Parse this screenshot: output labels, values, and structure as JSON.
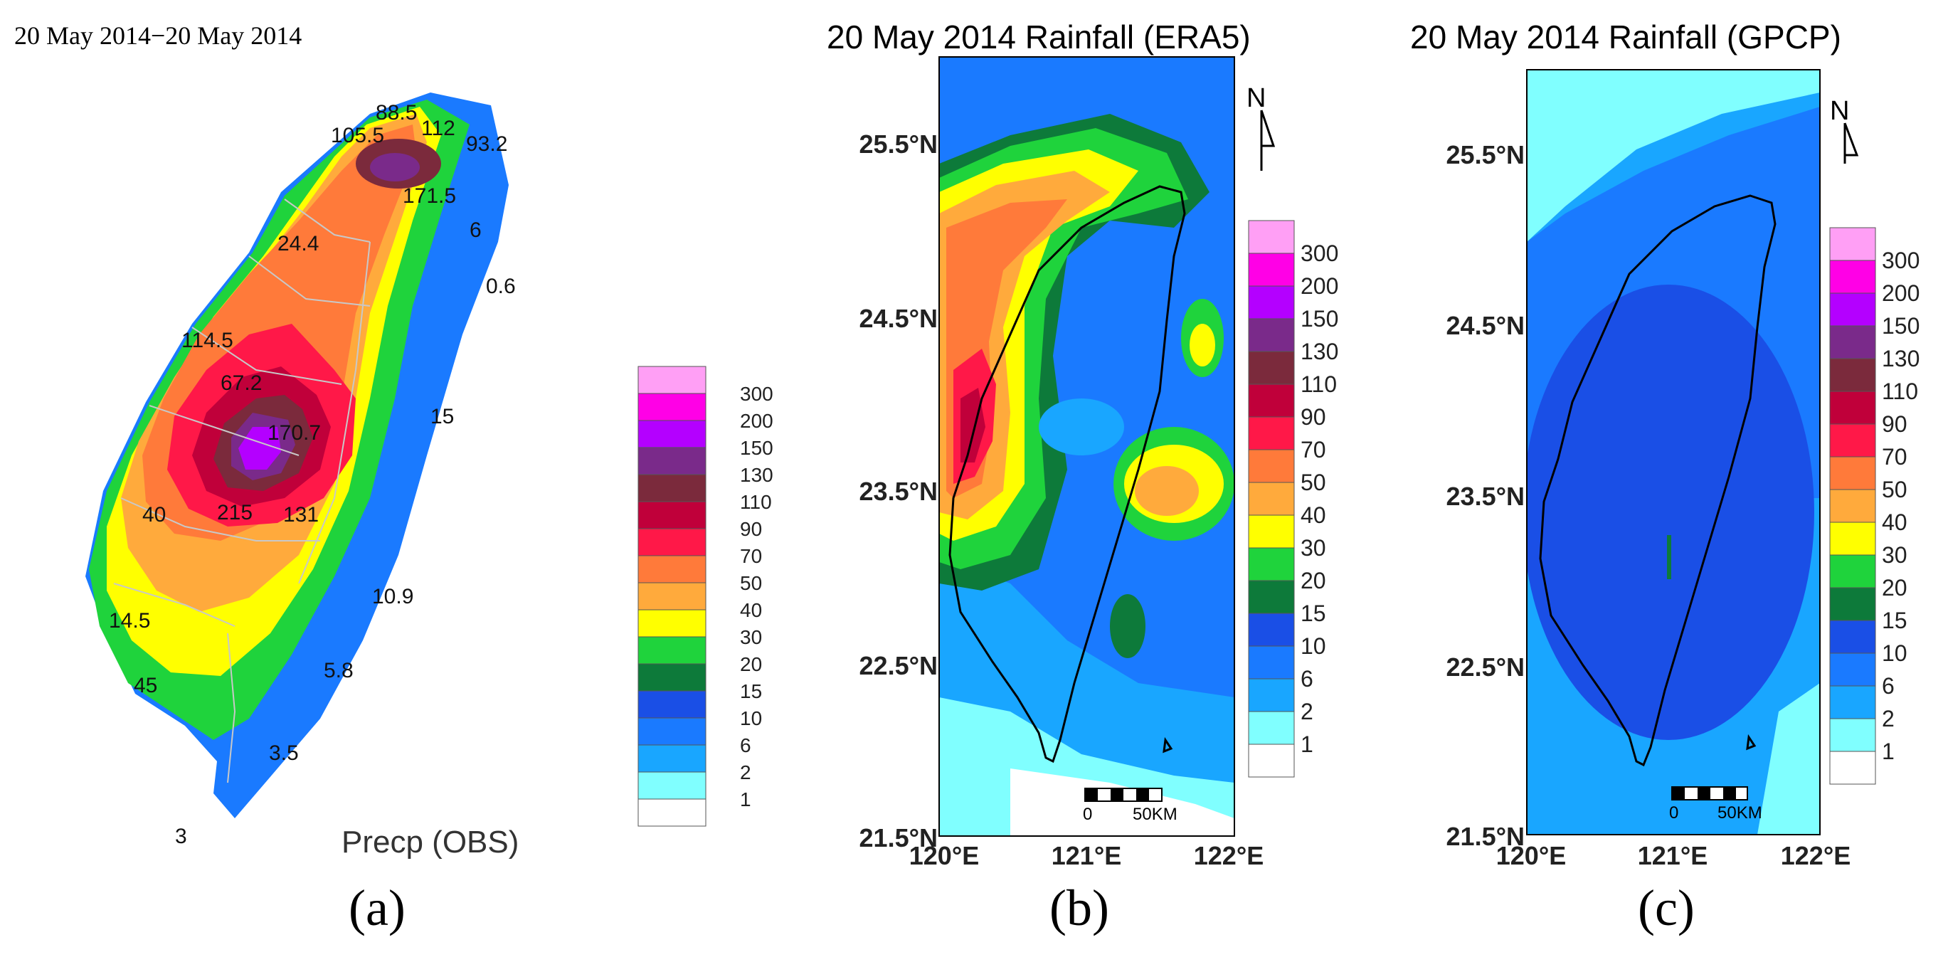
{
  "panel_a": {
    "date_range": "20 May 2014−20 May 2014",
    "title": "Precp (OBS)",
    "caption": "(a)",
    "station_values": [
      {
        "label": "88.5"
      },
      {
        "label": "105.5"
      },
      {
        "label": "112"
      },
      {
        "label": "93.2"
      },
      {
        "label": "171.5"
      },
      {
        "label": "24.4"
      },
      {
        "label": "6"
      },
      {
        "label": "0.6"
      },
      {
        "label": "114.5"
      },
      {
        "label": "67.2"
      },
      {
        "label": "15"
      },
      {
        "label": "170.7"
      },
      {
        "label": "40"
      },
      {
        "label": "215"
      },
      {
        "label": "131"
      },
      {
        "label": "10.9"
      },
      {
        "label": "14.5"
      },
      {
        "label": "5.8"
      },
      {
        "label": "45"
      },
      {
        "label": "3.5"
      },
      {
        "label": "3"
      }
    ]
  },
  "panel_b": {
    "title": "20 May 2014 Rainfall (ERA5)",
    "caption": "(b)",
    "lat_ticks": [
      "25.5°N",
      "24.5°N",
      "23.5°N",
      "22.5°N",
      "21.5°N"
    ],
    "lon_ticks": [
      "120°E",
      "121°E",
      "122°E"
    ],
    "north_label": "N",
    "scale_zero": "0",
    "scale_label": "50KM"
  },
  "panel_c": {
    "title": "20 May 2014 Rainfall (GPCP)",
    "caption": "(c)",
    "lat_ticks": [
      "25.5°N",
      "24.5°N",
      "23.5°N",
      "22.5°N",
      "21.5°N"
    ],
    "lon_ticks": [
      "120°E",
      "121°E",
      "122°E"
    ],
    "north_label": "N",
    "scale_zero": "0",
    "scale_label": "50KM"
  },
  "colorbar": {
    "levels": [
      "300",
      "200",
      "150",
      "130",
      "110",
      "90",
      "70",
      "50",
      "40",
      "30",
      "20",
      "15",
      "10",
      "6",
      "2",
      "1"
    ],
    "colors": [
      "#ff9ff5",
      "#ff00e6",
      "#b400ff",
      "#7a2a8a",
      "#7b2a3c",
      "#c0003a",
      "#ff1848",
      "#ff7a3a",
      "#ffaa3c",
      "#ffff00",
      "#1fd33c",
      "#0d7a3a",
      "#1a4fe6",
      "#1a7aff",
      "#19a6ff",
      "#80ffff",
      "#ffffff"
    ]
  }
}
